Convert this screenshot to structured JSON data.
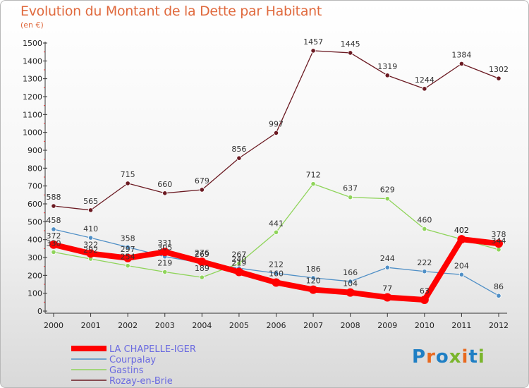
{
  "title": "Evolution du Montant de la Dette par Habitant",
  "unit": "(en €)",
  "logo": {
    "text": "Proxiti",
    "colors": [
      "#1f7fc4",
      "#e8691f",
      "#1f7fc4",
      "#7ab52c",
      "#e8691f",
      "#1f7fc4",
      "#7ab52c"
    ]
  },
  "chart_data": {
    "type": "line",
    "title": "Evolution du Montant de la Dette par Habitant",
    "subtitle": "(en €)",
    "x": [
      "2000",
      "2001",
      "2002",
      "2003",
      "2004",
      "2005",
      "2006",
      "2007",
      "2008",
      "2009",
      "2010",
      "2011",
      "2012"
    ],
    "ylim": [
      0,
      1500
    ],
    "yticks": [
      0,
      100,
      200,
      300,
      400,
      500,
      600,
      700,
      800,
      900,
      1000,
      1100,
      1200,
      1300,
      1400,
      1500
    ],
    "grid": false,
    "legend_position": "bottom-left",
    "series": [
      {
        "name": "LA CHAPELLE-IGER",
        "color": "#ff0000",
        "width": 8,
        "values": [
          372,
          322,
          297,
          331,
          276,
          219,
          160,
          120,
          104,
          77,
          63,
          402,
          378
        ]
      },
      {
        "name": "Courpalay",
        "color": "#4f8fc6",
        "width": 1.3,
        "values": [
          458,
          410,
          358,
          305,
          269,
          240,
          212,
          186,
          166,
          244,
          222,
          204,
          86
        ]
      },
      {
        "name": "Gastins",
        "color": "#8fd45a",
        "width": 1.3,
        "values": [
          330,
          292,
          254,
          219,
          189,
          267,
          441,
          712,
          637,
          629,
          460,
          402,
          344
        ]
      },
      {
        "name": "Rozay-en-Brie",
        "color": "#6b1a22",
        "width": 1.3,
        "values": [
          588,
          565,
          715,
          660,
          679,
          856,
          997,
          1457,
          1445,
          1319,
          1244,
          1384,
          1302
        ]
      }
    ]
  }
}
